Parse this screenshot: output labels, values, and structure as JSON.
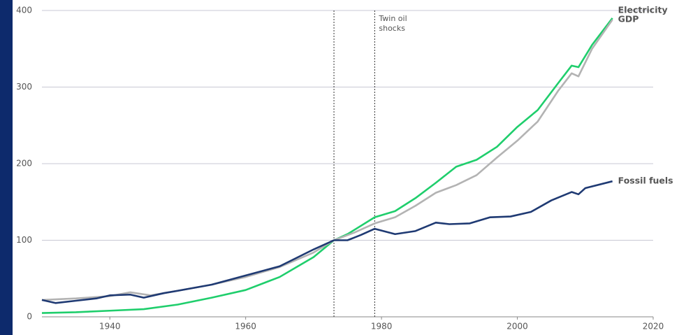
{
  "chart_data": {
    "type": "line",
    "xlim": [
      1930,
      2020
    ],
    "xticks": [
      1940,
      1960,
      1980,
      2000,
      2020
    ],
    "ylim": [
      0,
      400
    ],
    "yticks": [
      0,
      100,
      200,
      300,
      400
    ],
    "grid": true,
    "series": [
      {
        "name": "Electricity",
        "color": "#1fce6c",
        "x": [
          1930,
          1935,
          1940,
          1945,
          1950,
          1955,
          1960,
          1965,
          1970,
          1973,
          1975,
          1979,
          1982,
          1985,
          1988,
          1991,
          1994,
          1997,
          2000,
          2003,
          2006,
          2008,
          2009,
          2011,
          2014
        ],
        "values": [
          5,
          6,
          8,
          10,
          16,
          25,
          35,
          52,
          78,
          100,
          108,
          130,
          138,
          155,
          175,
          196,
          205,
          222,
          248,
          270,
          305,
          328,
          326,
          355,
          390
        ]
      },
      {
        "name": "GDP",
        "color": "#b3b3b3",
        "x": [
          1930,
          1935,
          1940,
          1943,
          1946,
          1950,
          1955,
          1960,
          1965,
          1970,
          1973,
          1976,
          1979,
          1982,
          1985,
          1988,
          1991,
          1994,
          1997,
          2000,
          2003,
          2006,
          2008,
          2009,
          2011,
          2014
        ],
        "values": [
          22,
          24,
          27,
          32,
          28,
          34,
          42,
          52,
          65,
          84,
          100,
          110,
          122,
          130,
          145,
          162,
          172,
          185,
          208,
          230,
          255,
          295,
          318,
          314,
          350,
          388
        ]
      },
      {
        "name": "Fossil fuels",
        "color": "#1f3a73",
        "x": [
          1930,
          1932,
          1935,
          1938,
          1940,
          1943,
          1945,
          1948,
          1950,
          1955,
          1960,
          1965,
          1970,
          1973,
          1975,
          1977,
          1979,
          1982,
          1985,
          1988,
          1990,
          1993,
          1996,
          1999,
          2002,
          2005,
          2008,
          2009,
          2010,
          2014
        ],
        "values": [
          22,
          18,
          21,
          24,
          28,
          29,
          25,
          31,
          34,
          42,
          54,
          66,
          88,
          100,
          100,
          107,
          115,
          108,
          112,
          123,
          121,
          122,
          130,
          131,
          137,
          152,
          163,
          160,
          168,
          177
        ]
      }
    ],
    "annotations": [
      {
        "x": 1973
      },
      {
        "x": 1979,
        "text": [
          "Twin oil",
          "shocks"
        ]
      }
    ]
  }
}
